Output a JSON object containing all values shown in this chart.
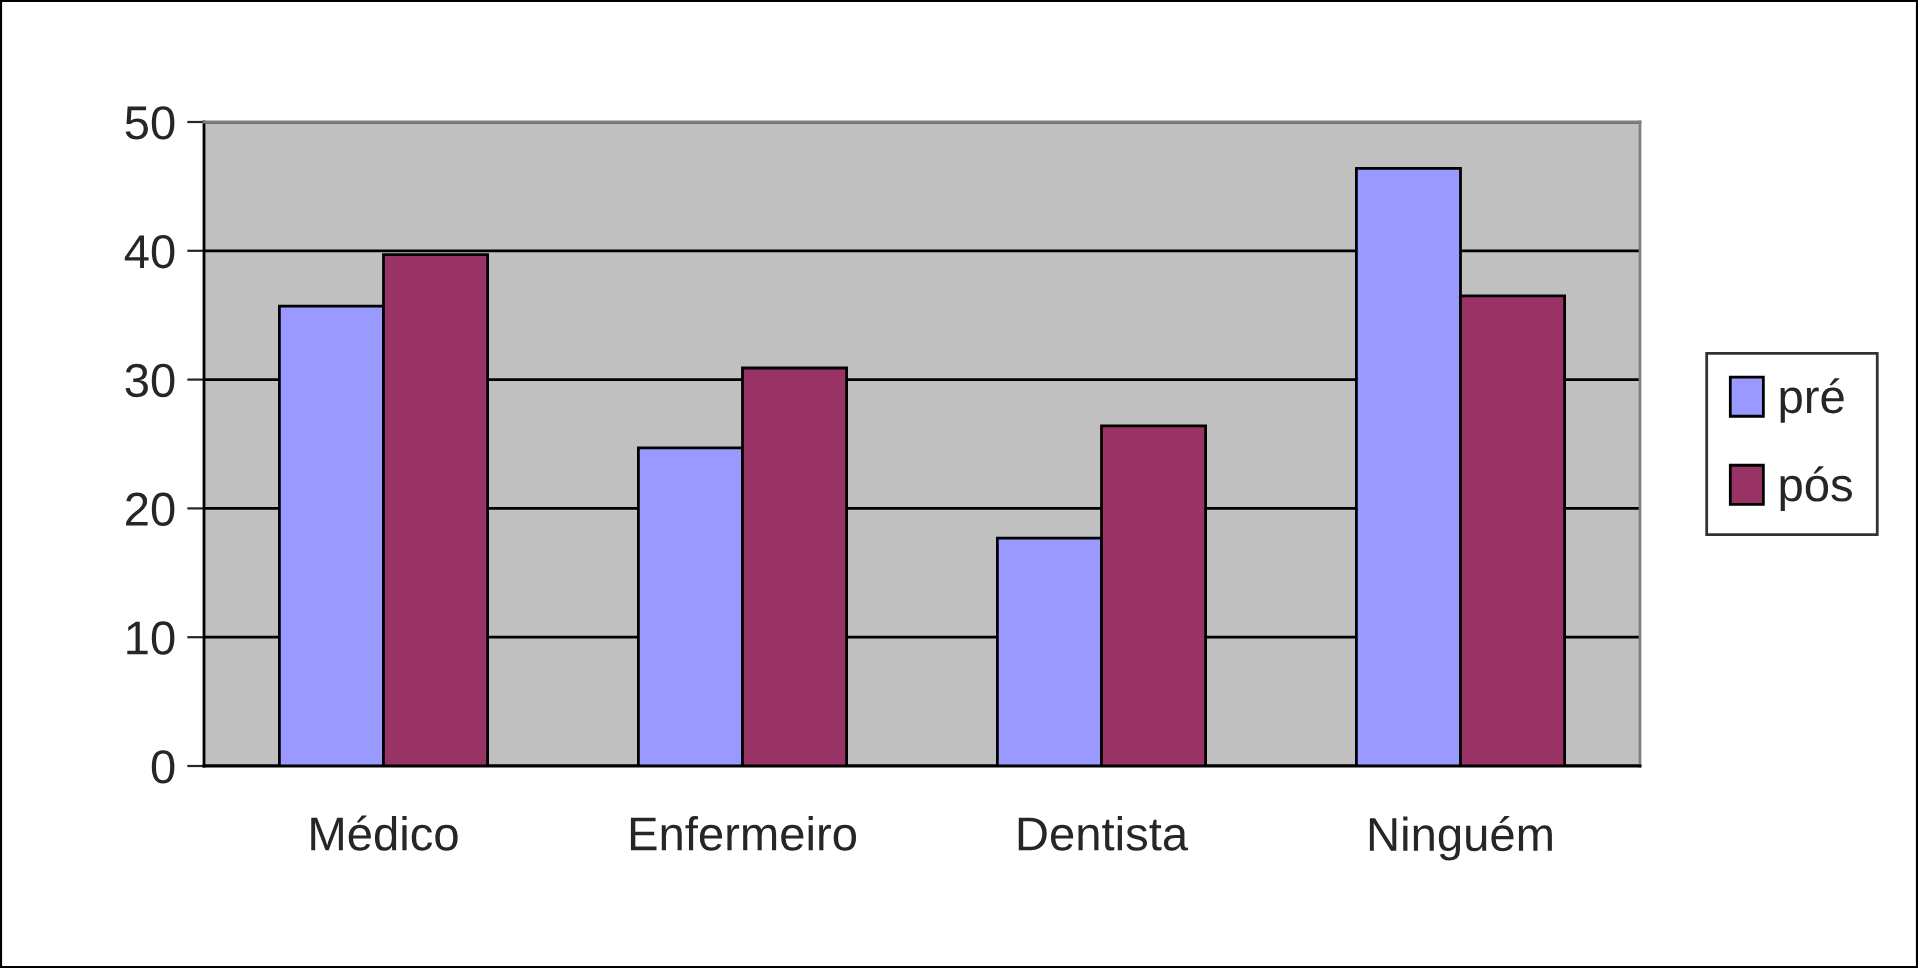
{
  "chart_data": {
    "type": "bar",
    "categories": [
      "Médico",
      "Enfermeiro",
      "Dentista",
      "Ninguém"
    ],
    "series": [
      {
        "name": "pré",
        "color": "#9999ff",
        "values": [
          35.7,
          24.7,
          17.7,
          46.4
        ]
      },
      {
        "name": "pós",
        "color": "#993366",
        "values": [
          39.7,
          30.9,
          26.4,
          36.5
        ]
      }
    ],
    "ylim": [
      0,
      50
    ],
    "yticks": [
      0,
      10,
      20,
      30,
      40,
      50
    ],
    "grid": "y",
    "legend": "right"
  }
}
